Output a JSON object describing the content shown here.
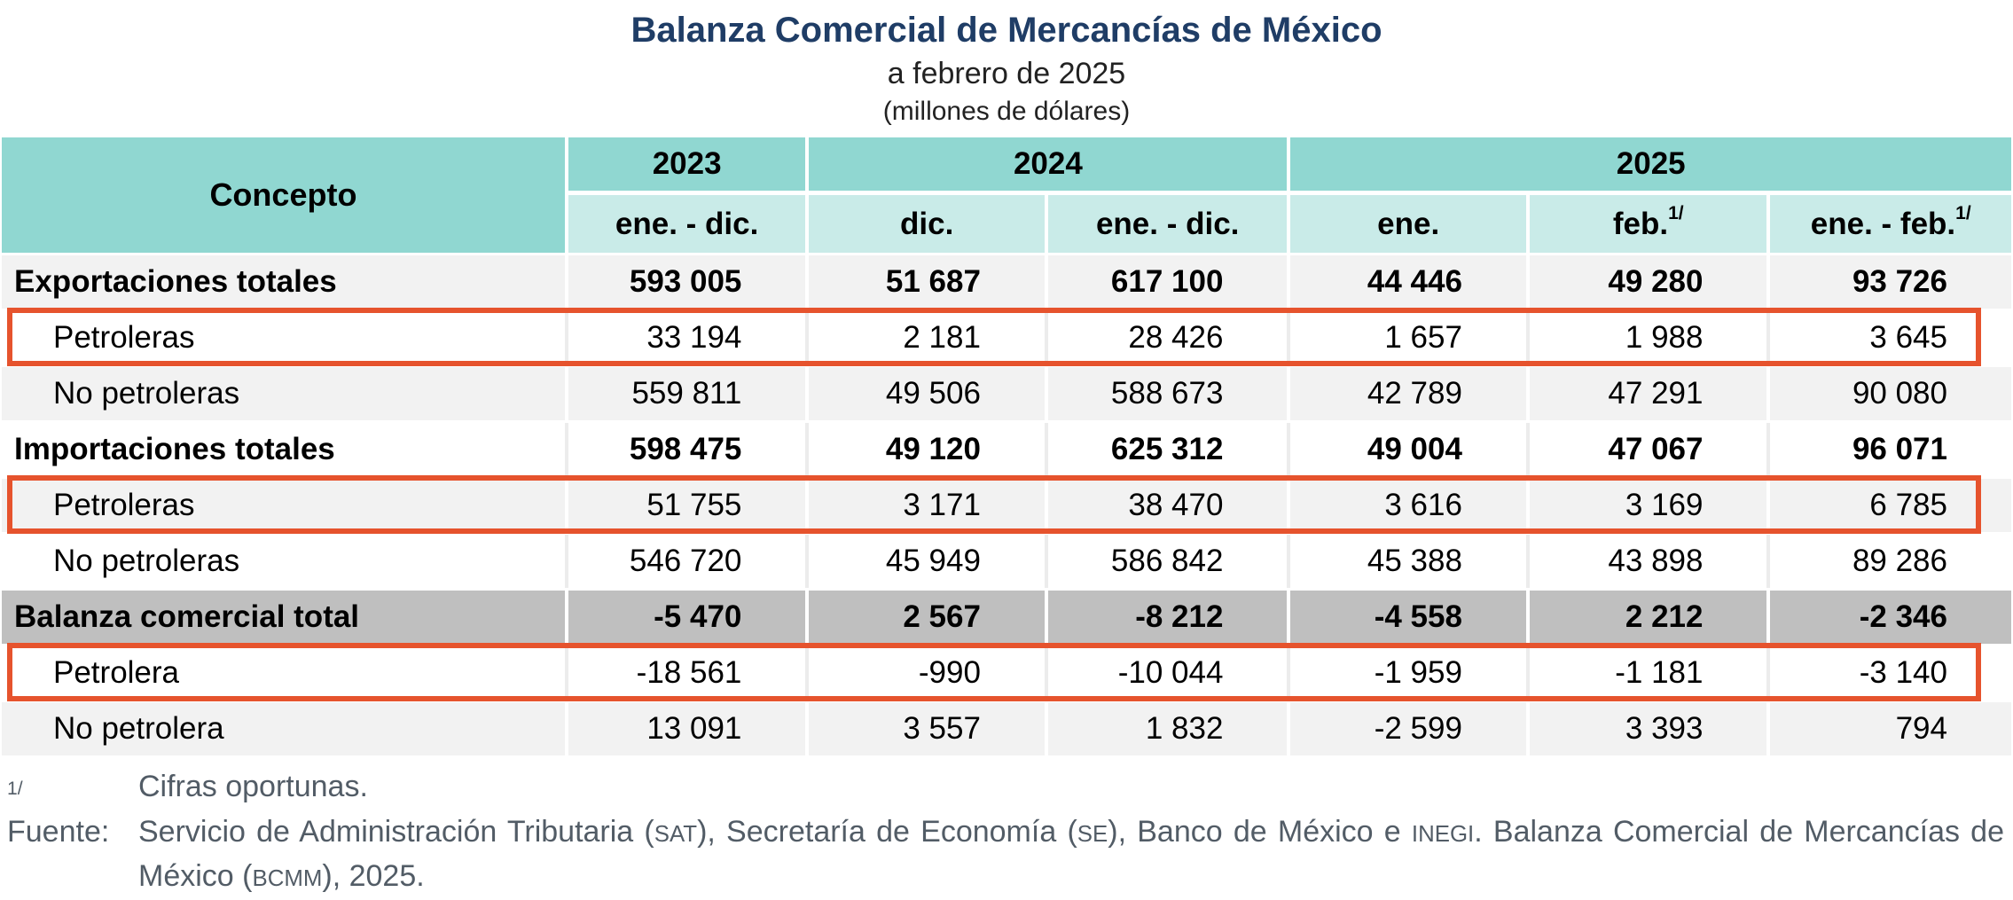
{
  "title": {
    "main": "Balanza Comercial de Mercancías de México",
    "subtitle": "a febrero de 2025",
    "unit": "(millones de dólares)"
  },
  "table": {
    "concepto_header": "Concepto",
    "year_headers": [
      "2023",
      "2024",
      "2025"
    ],
    "period_headers": [
      {
        "label": "ene. - dic."
      },
      {
        "label": "dic."
      },
      {
        "label": "ene. - dic."
      },
      {
        "label": "ene."
      },
      {
        "label": "feb.",
        "sup": "1/"
      },
      {
        "label": "ene. - feb.",
        "sup": "1/"
      }
    ],
    "rows": [
      {
        "label": "Exportaciones totales",
        "values": [
          "593 005",
          "51 687",
          "617 100",
          "44 446",
          "49 280",
          "93 726"
        ]
      },
      {
        "label": "Petroleras",
        "values": [
          "33 194",
          "2 181",
          "28 426",
          "1 657",
          "1 988",
          "3 645"
        ]
      },
      {
        "label": "No petroleras",
        "values": [
          "559 811",
          "49 506",
          "588 673",
          "42 789",
          "47 291",
          "90 080"
        ]
      },
      {
        "label": "Importaciones totales",
        "values": [
          "598 475",
          "49 120",
          "625 312",
          "49 004",
          "47 067",
          "96 071"
        ]
      },
      {
        "label": "Petroleras",
        "values": [
          "51 755",
          "3 171",
          "38 470",
          "3 616",
          "3 169",
          "6 785"
        ]
      },
      {
        "label": "No petroleras",
        "values": [
          "546 720",
          "45 949",
          "586 842",
          "45 388",
          "43 898",
          "89 286"
        ]
      },
      {
        "label": "Balanza comercial total",
        "values": [
          "-5 470",
          "2 567",
          "-8 212",
          "-4 558",
          "2 212",
          "-2 346"
        ]
      },
      {
        "label": "Petrolera",
        "values": [
          "-18 561",
          "-990",
          "-10 044",
          "-1 959",
          "-1 181",
          "-3 140"
        ]
      },
      {
        "label": "No petrolera",
        "values": [
          "13 091",
          "3 557",
          "1 832",
          "-2 599",
          "3 393",
          "794"
        ]
      }
    ]
  },
  "footnotes": {
    "marker": "1/",
    "note": "Cifras oportunas.",
    "source_label": "Fuente:",
    "source_segments": [
      {
        "t": "Servicio de Administración Tributaria ("
      },
      {
        "sc": "SAT"
      },
      {
        "t": "), Secretaría de Economía ("
      },
      {
        "sc": "SE"
      },
      {
        "t": "), Banco de México e "
      },
      {
        "sc": "INEGI"
      },
      {
        "t": ". Balanza Comercial de Mercancías de México ("
      },
      {
        "sc": "BCMM"
      },
      {
        "t": "), 2025."
      }
    ]
  },
  "colors": {
    "title_navy": "#1F3D66",
    "header_teal_dark": "#90D7D1",
    "header_teal_light": "#C9EBE8",
    "row_gray": "#F2F2F2",
    "total_row_gray": "#BFBFBF",
    "highlight_orange": "#E6532D",
    "footnote_gray": "#525C66"
  }
}
